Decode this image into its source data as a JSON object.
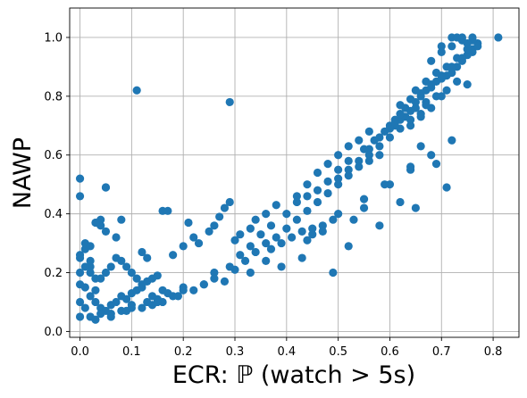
{
  "chart_data": {
    "type": "scatter",
    "title": "",
    "xlabel": "ECR: ℙ (watch > 5s)",
    "ylabel": "NAWP",
    "xlim": [
      -0.02,
      0.85
    ],
    "ylim": [
      -0.02,
      1.1
    ],
    "xticks": [
      "0.0",
      "0.1",
      "0.2",
      "0.3",
      "0.4",
      "0.5",
      "0.6",
      "0.7",
      "0.8"
    ],
    "yticks": [
      "0.0",
      "0.2",
      "0.4",
      "0.6",
      "0.8",
      "1.0"
    ],
    "grid": true,
    "marker_color": "#1f77b4",
    "series": [
      {
        "x": [
          0.0,
          0.0,
          0.01,
          0.01,
          0.02,
          0.02,
          0.0,
          0.01,
          0.02,
          0.03,
          0.0,
          0.0,
          0.01,
          0.02,
          0.03,
          0.04,
          0.05,
          0.06,
          0.07,
          0.08,
          0.09,
          0.1,
          0.11,
          0.12,
          0.13,
          0.14,
          0.15,
          0.16,
          0.17,
          0.18,
          0.19,
          0.2,
          0.03,
          0.04,
          0.05,
          0.06,
          0.07,
          0.08,
          0.09,
          0.1,
          0.11,
          0.12,
          0.13,
          0.14,
          0.15,
          0.02,
          0.04,
          0.06,
          0.08,
          0.1,
          0.12,
          0.14,
          0.16,
          0.0,
          0.01,
          0.02,
          0.0,
          0.04,
          0.05,
          0.07,
          0.0,
          0.04,
          0.05,
          0.08,
          0.12,
          0.13,
          0.16,
          0.18,
          0.2,
          0.21,
          0.22,
          0.23,
          0.25,
          0.26,
          0.27,
          0.28,
          0.29,
          0.3,
          0.31,
          0.33,
          0.34,
          0.36,
          0.38,
          0.22,
          0.24,
          0.26,
          0.28,
          0.3,
          0.32,
          0.34,
          0.37,
          0.39,
          0.41,
          0.43,
          0.45,
          0.47,
          0.49,
          0.29,
          0.31,
          0.33,
          0.35,
          0.37,
          0.4,
          0.42,
          0.44,
          0.46,
          0.48,
          0.5,
          0.52,
          0.36,
          0.38,
          0.4,
          0.42,
          0.44,
          0.46,
          0.48,
          0.5,
          0.52,
          0.54,
          0.56,
          0.58,
          0.42,
          0.44,
          0.46,
          0.48,
          0.5,
          0.52,
          0.54,
          0.56,
          0.58,
          0.6,
          0.62,
          0.64,
          0.66,
          0.5,
          0.52,
          0.54,
          0.56,
          0.58,
          0.6,
          0.62,
          0.64,
          0.66,
          0.68,
          0.55,
          0.57,
          0.59,
          0.61,
          0.63,
          0.65,
          0.67,
          0.69,
          0.71,
          0.73,
          0.6,
          0.61,
          0.62,
          0.63,
          0.64,
          0.65,
          0.66,
          0.67,
          0.68,
          0.69,
          0.7,
          0.71,
          0.72,
          0.73,
          0.74,
          0.75,
          0.76,
          0.62,
          0.64,
          0.66,
          0.68,
          0.7,
          0.72,
          0.74,
          0.76,
          0.65,
          0.67,
          0.69,
          0.71,
          0.73,
          0.75,
          0.77,
          0.68,
          0.7,
          0.72,
          0.74,
          0.76,
          0.7,
          0.72,
          0.74,
          0.76,
          0.73,
          0.75,
          0.77,
          0.81,
          0.11,
          0.29,
          0.05,
          0.17,
          0.03,
          0.6,
          0.64,
          0.66,
          0.71,
          0.65,
          0.53,
          0.55,
          0.44,
          0.47,
          0.62,
          0.69,
          0.58,
          0.52,
          0.43,
          0.49,
          0.39,
          0.36,
          0.33,
          0.26,
          0.24,
          0.2,
          0.15,
          0.1,
          0.09,
          0.06,
          0.03,
          0.45,
          0.5,
          0.55,
          0.59,
          0.64,
          0.68,
          0.72,
          0.56,
          0.61,
          0.67,
          0.7,
          0.75
        ],
        "y": [
          0.05,
          0.1,
          0.08,
          0.15,
          0.12,
          0.2,
          0.25,
          0.28,
          0.22,
          0.18,
          0.52,
          0.46,
          0.3,
          0.29,
          0.1,
          0.08,
          0.07,
          0.09,
          0.1,
          0.12,
          0.11,
          0.13,
          0.14,
          0.15,
          0.1,
          0.12,
          0.11,
          0.14,
          0.13,
          0.12,
          0.12,
          0.15,
          0.14,
          0.18,
          0.2,
          0.22,
          0.25,
          0.24,
          0.22,
          0.2,
          0.18,
          0.16,
          0.17,
          0.18,
          0.19,
          0.05,
          0.06,
          0.05,
          0.07,
          0.08,
          0.08,
          0.09,
          0.1,
          0.2,
          0.22,
          0.24,
          0.26,
          0.38,
          0.49,
          0.32,
          0.16,
          0.36,
          0.34,
          0.38,
          0.27,
          0.25,
          0.41,
          0.26,
          0.29,
          0.37,
          0.32,
          0.3,
          0.34,
          0.36,
          0.39,
          0.42,
          0.44,
          0.31,
          0.33,
          0.35,
          0.38,
          0.4,
          0.43,
          0.14,
          0.16,
          0.2,
          0.17,
          0.21,
          0.24,
          0.27,
          0.28,
          0.3,
          0.32,
          0.34,
          0.33,
          0.36,
          0.38,
          0.22,
          0.26,
          0.29,
          0.33,
          0.36,
          0.4,
          0.44,
          0.46,
          0.48,
          0.51,
          0.55,
          0.58,
          0.3,
          0.32,
          0.35,
          0.38,
          0.41,
          0.44,
          0.47,
          0.5,
          0.53,
          0.56,
          0.58,
          0.6,
          0.46,
          0.5,
          0.54,
          0.57,
          0.6,
          0.63,
          0.65,
          0.62,
          0.66,
          0.69,
          0.72,
          0.7,
          0.73,
          0.52,
          0.55,
          0.58,
          0.6,
          0.63,
          0.66,
          0.69,
          0.72,
          0.74,
          0.76,
          0.62,
          0.65,
          0.68,
          0.7,
          0.73,
          0.76,
          0.78,
          0.8,
          0.82,
          0.85,
          0.7,
          0.72,
          0.74,
          0.76,
          0.75,
          0.78,
          0.8,
          0.82,
          0.83,
          0.85,
          0.86,
          0.87,
          0.88,
          0.9,
          0.92,
          0.94,
          0.95,
          0.77,
          0.79,
          0.81,
          0.84,
          0.87,
          0.9,
          0.93,
          0.96,
          0.82,
          0.85,
          0.88,
          0.9,
          0.93,
          0.96,
          0.98,
          0.92,
          0.95,
          0.97,
          0.99,
          1.0,
          0.97,
          1.0,
          1.0,
          0.99,
          1.0,
          0.98,
          0.97,
          1.0,
          0.82,
          0.78,
          0.49,
          0.41,
          0.37,
          0.5,
          0.55,
          0.63,
          0.49,
          0.42,
          0.38,
          0.42,
          0.31,
          0.34,
          0.44,
          0.57,
          0.36,
          0.29,
          0.25,
          0.2,
          0.22,
          0.24,
          0.2,
          0.18,
          0.16,
          0.14,
          0.1,
          0.09,
          0.07,
          0.06,
          0.04,
          0.35,
          0.4,
          0.45,
          0.5,
          0.56,
          0.6,
          0.65,
          0.68,
          0.71,
          0.77,
          0.8,
          0.84
        ]
      }
    ]
  }
}
